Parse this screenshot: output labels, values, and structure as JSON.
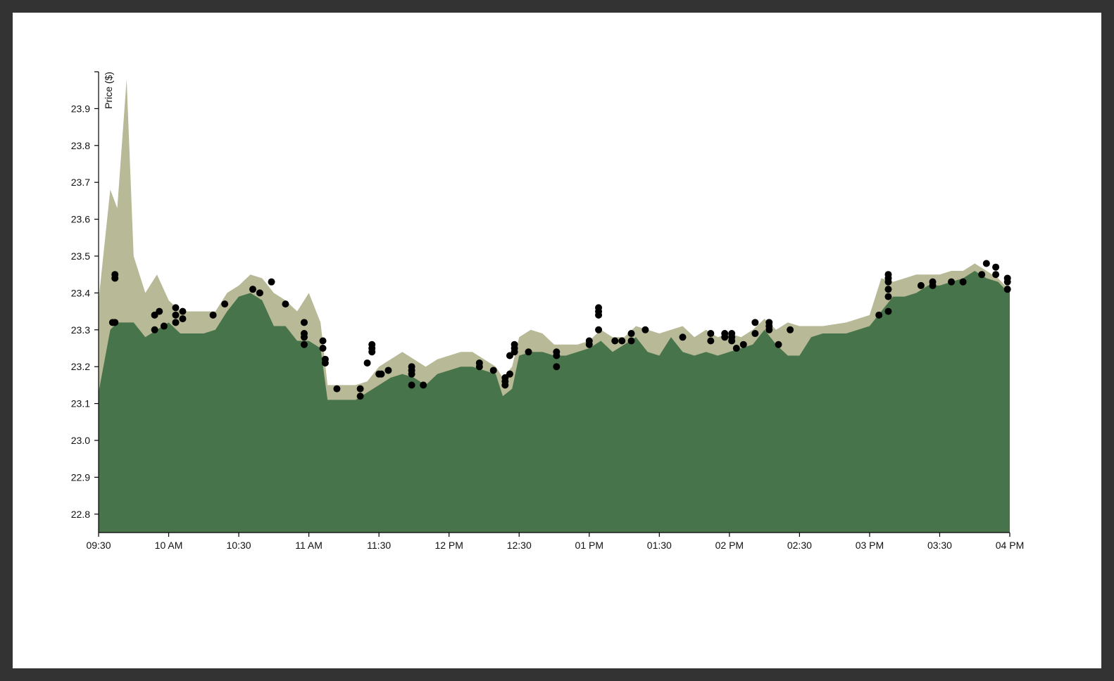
{
  "chart_data": {
    "type": "area",
    "y_label": "Price ($)",
    "xlim": [
      "09:30",
      "16:00"
    ],
    "xticks": [
      "09:30",
      {
        "value": "10:00",
        "label": "10 AM"
      },
      "10:30",
      {
        "value": "11:00",
        "label": "11 AM"
      },
      "11:30",
      {
        "value": "12:00",
        "label": "12 PM"
      },
      {
        "value": "12:30",
        "label": "12:30"
      },
      {
        "value": "13:00",
        "label": "01 PM"
      },
      {
        "value": "13:30",
        "label": "01:30"
      },
      {
        "value": "14:00",
        "label": "02 PM"
      },
      {
        "value": "14:30",
        "label": "02:30"
      },
      {
        "value": "15:00",
        "label": "03 PM"
      },
      {
        "value": "15:30",
        "label": "03:30"
      },
      {
        "value": "16:00",
        "label": "04 PM"
      }
    ],
    "ylim": [
      22.75,
      24.0
    ],
    "yticks": [
      22.8,
      22.9,
      {
        "value": 23,
        "label": "23.0"
      },
      23.1,
      23.2,
      23.3,
      23.4,
      23.5,
      23.6,
      23.7,
      23.8,
      23.9
    ],
    "series": [
      {
        "type": "area",
        "color": "#b8b996",
        "x": [
          "09:30",
          "09:35",
          "09:38",
          "09:42",
          "09:45",
          "09:50",
          "09:55",
          "10:00",
          "10:05",
          "10:15",
          "10:20",
          "10:25",
          "10:30",
          "10:35",
          "10:40",
          "10:45",
          "10:50",
          "10:55",
          "11:00",
          "11:05",
          "11:08",
          "11:15",
          "11:20",
          "11:25",
          "11:30",
          "11:35",
          "11:40",
          "11:45",
          "11:50",
          "11:55",
          "12:00",
          "12:05",
          "12:10",
          "12:15",
          "12:20",
          "12:23",
          "12:27",
          "12:30",
          "12:35",
          "12:40",
          "12:45",
          "12:50",
          "12:55",
          "13:00",
          "13:05",
          "13:10",
          "13:15",
          "13:20",
          "13:25",
          "13:30",
          "13:35",
          "13:40",
          "13:45",
          "13:50",
          "13:55",
          "14:00",
          "14:05",
          "14:10",
          "14:15",
          "14:20",
          "14:25",
          "14:30",
          "14:35",
          "14:40",
          "14:50",
          "15:00",
          "15:05",
          "15:10",
          "15:15",
          "15:20",
          "15:25",
          "15:30",
          "15:35",
          "15:40",
          "15:45",
          "15:50",
          "15:55",
          "15:58"
        ],
        "values": [
          23.38,
          23.68,
          23.63,
          23.98,
          23.5,
          23.4,
          23.45,
          23.38,
          23.35,
          23.35,
          23.35,
          23.4,
          23.42,
          23.45,
          23.44,
          23.4,
          23.38,
          23.35,
          23.4,
          23.32,
          23.15,
          23.15,
          23.15,
          23.16,
          23.2,
          23.22,
          23.24,
          23.22,
          23.2,
          23.22,
          23.23,
          23.24,
          23.24,
          23.22,
          23.2,
          23.17,
          23.2,
          23.28,
          23.3,
          23.29,
          23.26,
          23.26,
          23.26,
          23.27,
          23.3,
          23.28,
          23.28,
          23.31,
          23.3,
          23.29,
          23.3,
          23.31,
          23.28,
          23.3,
          23.28,
          23.29,
          23.28,
          23.3,
          23.33,
          23.3,
          23.32,
          23.31,
          23.31,
          23.31,
          23.32,
          23.34,
          23.44,
          23.43,
          23.44,
          23.45,
          23.45,
          23.45,
          23.46,
          23.46,
          23.48,
          23.46,
          23.44,
          23.42
        ]
      },
      {
        "type": "area",
        "color": "#48744b",
        "x": [
          "09:30",
          "09:35",
          "09:38",
          "09:42",
          "09:45",
          "09:50",
          "09:55",
          "10:00",
          "10:05",
          "10:15",
          "10:20",
          "10:25",
          "10:30",
          "10:35",
          "10:40",
          "10:45",
          "10:50",
          "10:55",
          "11:00",
          "11:05",
          "11:08",
          "11:15",
          "11:20",
          "11:25",
          "11:30",
          "11:35",
          "11:40",
          "11:45",
          "11:50",
          "11:55",
          "12:00",
          "12:05",
          "12:10",
          "12:15",
          "12:20",
          "12:23",
          "12:27",
          "12:30",
          "12:35",
          "12:40",
          "12:45",
          "12:50",
          "12:55",
          "13:00",
          "13:05",
          "13:10",
          "13:15",
          "13:20",
          "13:25",
          "13:30",
          "13:35",
          "13:40",
          "13:45",
          "13:50",
          "13:55",
          "14:00",
          "14:05",
          "14:10",
          "14:15",
          "14:20",
          "14:25",
          "14:30",
          "14:35",
          "14:40",
          "14:50",
          "15:00",
          "15:05",
          "15:10",
          "15:15",
          "15:20",
          "15:25",
          "15:30",
          "15:35",
          "15:40",
          "15:45",
          "15:50",
          "15:55",
          "15:58"
        ],
        "values": [
          23.13,
          23.3,
          23.32,
          23.32,
          23.32,
          23.28,
          23.3,
          23.32,
          23.29,
          23.29,
          23.3,
          23.35,
          23.39,
          23.4,
          23.38,
          23.31,
          23.31,
          23.27,
          23.27,
          23.25,
          23.11,
          23.11,
          23.11,
          23.13,
          23.15,
          23.17,
          23.18,
          23.17,
          23.15,
          23.18,
          23.19,
          23.2,
          23.2,
          23.19,
          23.18,
          23.12,
          23.14,
          23.23,
          23.24,
          23.24,
          23.23,
          23.23,
          23.24,
          23.25,
          23.27,
          23.24,
          23.26,
          23.28,
          23.24,
          23.23,
          23.28,
          23.24,
          23.23,
          23.24,
          23.23,
          23.24,
          23.25,
          23.26,
          23.3,
          23.26,
          23.23,
          23.23,
          23.28,
          23.29,
          23.29,
          23.31,
          23.35,
          23.39,
          23.39,
          23.4,
          23.42,
          23.42,
          23.43,
          23.44,
          23.46,
          23.44,
          23.43,
          23.41
        ]
      },
      {
        "type": "scatter",
        "color": "#000000",
        "x": [
          "09:36",
          "09:37",
          "09:37",
          "09:37",
          "09:54",
          "09:54",
          "09:56",
          "09:58",
          "10:03",
          "10:03",
          "10:03",
          "10:06",
          "10:06",
          "10:19",
          "10:24",
          "10:36",
          "10:39",
          "10:44",
          "10:50",
          "10:58",
          "10:58",
          "10:58",
          "10:58",
          "11:06",
          "11:06",
          "11:07",
          "11:07",
          "11:12",
          "11:22",
          "11:22",
          "11:25",
          "11:27",
          "11:27",
          "11:27",
          "11:30",
          "11:31",
          "11:34",
          "11:44",
          "11:44",
          "11:44",
          "11:44",
          "11:49",
          "12:13",
          "12:13",
          "12:19",
          "12:24",
          "12:24",
          "12:24",
          "12:26",
          "12:26",
          "12:28",
          "12:28",
          "12:28",
          "12:34",
          "12:46",
          "12:46",
          "12:46",
          "13:00",
          "13:00",
          "13:04",
          "13:04",
          "13:04",
          "13:04",
          "13:11",
          "13:14",
          "13:18",
          "13:18",
          "13:24",
          "13:40",
          "13:52",
          "13:52",
          "13:58",
          "13:58",
          "14:01",
          "14:01",
          "14:01",
          "14:03",
          "14:06",
          "14:11",
          "14:11",
          "14:17",
          "14:17",
          "14:17",
          "14:21",
          "14:26",
          "15:04",
          "15:08",
          "15:08",
          "15:08",
          "15:08",
          "15:08",
          "15:08",
          "15:22",
          "15:27",
          "15:27",
          "15:35",
          "15:40",
          "15:48",
          "15:50",
          "15:54",
          "15:54",
          "15:59",
          "15:59",
          "15:59"
        ],
        "values": [
          23.32,
          23.32,
          23.45,
          23.44,
          23.34,
          23.3,
          23.35,
          23.31,
          23.36,
          23.34,
          23.32,
          23.35,
          23.33,
          23.34,
          23.37,
          23.41,
          23.4,
          23.43,
          23.37,
          23.32,
          23.29,
          23.28,
          23.26,
          23.27,
          23.25,
          23.22,
          23.21,
          23.14,
          23.14,
          23.12,
          23.21,
          23.26,
          23.25,
          23.24,
          23.18,
          23.18,
          23.19,
          23.2,
          23.19,
          23.18,
          23.15,
          23.15,
          23.21,
          23.2,
          23.19,
          23.17,
          23.16,
          23.15,
          23.18,
          23.23,
          23.26,
          23.25,
          23.24,
          23.24,
          23.24,
          23.23,
          23.2,
          23.27,
          23.26,
          23.36,
          23.35,
          23.34,
          23.3,
          23.27,
          23.27,
          23.29,
          23.27,
          23.3,
          23.28,
          23.29,
          23.27,
          23.29,
          23.28,
          23.29,
          23.28,
          23.27,
          23.25,
          23.26,
          23.32,
          23.29,
          23.32,
          23.31,
          23.3,
          23.26,
          23.3,
          23.34,
          23.35,
          23.45,
          23.44,
          23.43,
          23.41,
          23.39,
          23.42,
          23.43,
          23.42,
          23.43,
          23.43,
          23.45,
          23.48,
          23.47,
          23.45,
          23.44,
          23.43,
          23.41
        ]
      }
    ]
  }
}
